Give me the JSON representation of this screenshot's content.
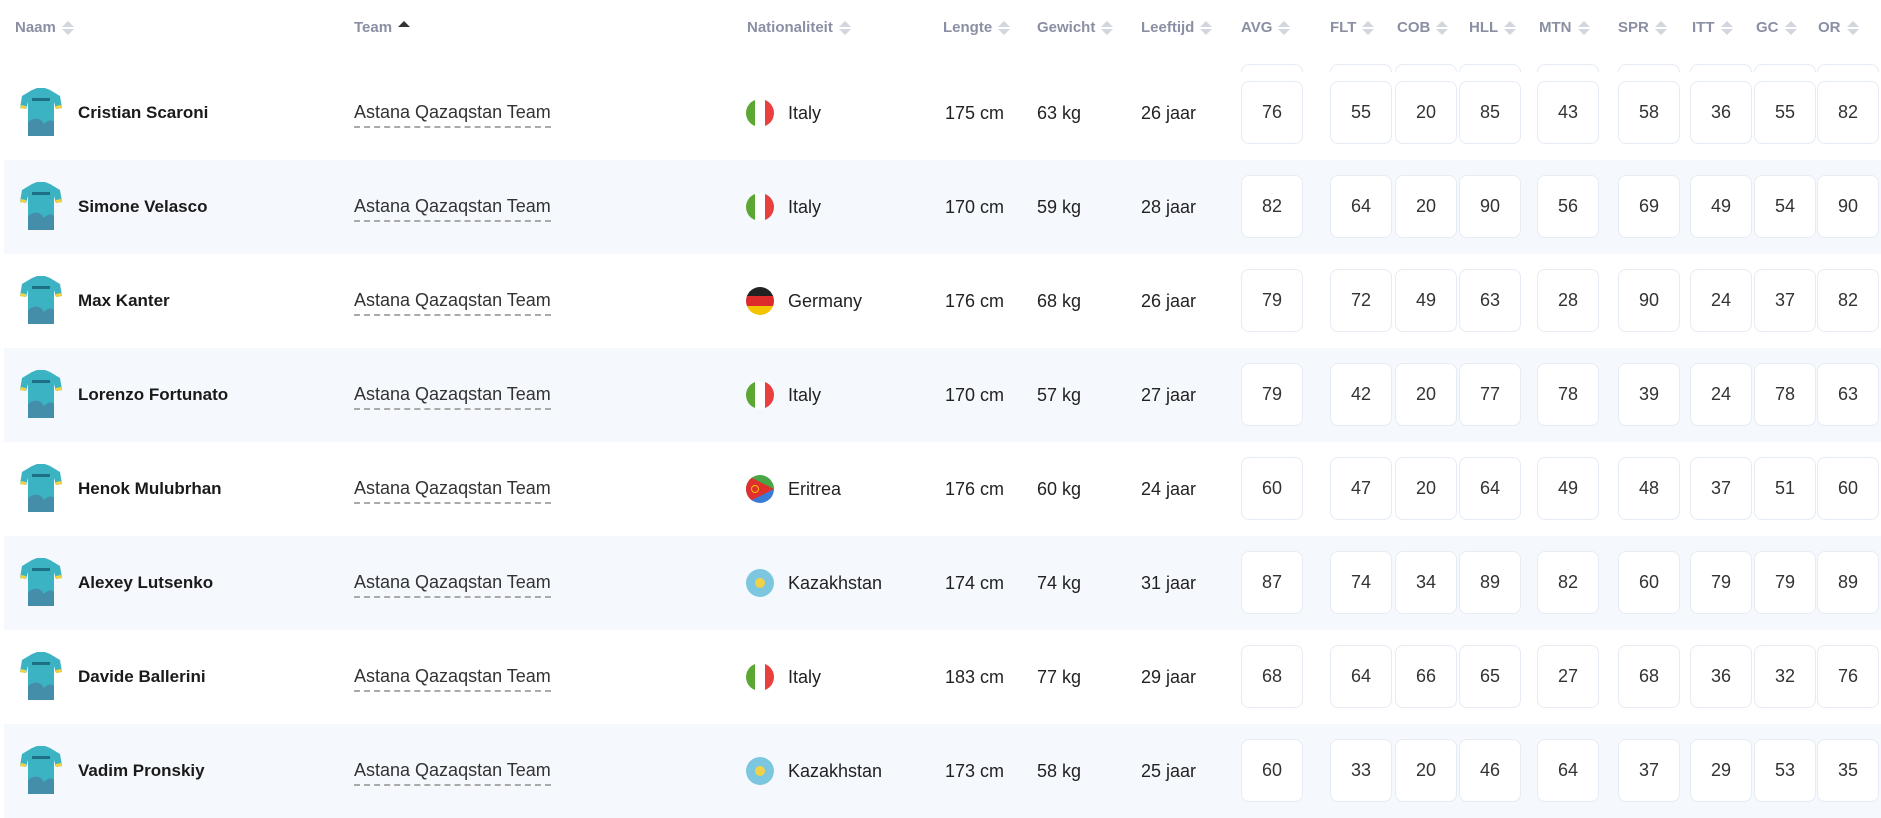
{
  "headers": {
    "naam": "Naam",
    "team": "Team",
    "nationaliteit": "Nationaliteit",
    "lengte": "Lengte",
    "gewicht": "Gewicht",
    "leeftijd": "Leeftijd",
    "avg": "AVG",
    "flt": "FLT",
    "cob": "COB",
    "hll": "HLL",
    "mtn": "MTN",
    "spr": "SPR",
    "itt": "ITT",
    "gc": "GC",
    "or": "OR"
  },
  "sort": {
    "column": "team",
    "direction": "ascending"
  },
  "colors": {
    "jersey": "#3bb3c3",
    "stripe": "#f5f9fd",
    "header_text": "#8a8fa3"
  },
  "riders": [
    {
      "name": "Cristian Scaroni",
      "team": "Astana Qazaqstan Team",
      "country": "Italy",
      "flag": "italy",
      "height": "175 cm",
      "weight": "63 kg",
      "age": "26 jaar",
      "stats": [
        "76",
        "55",
        "20",
        "85",
        "43",
        "58",
        "36",
        "55",
        "82"
      ]
    },
    {
      "name": "Simone Velasco",
      "team": "Astana Qazaqstan Team",
      "country": "Italy",
      "flag": "italy",
      "height": "170 cm",
      "weight": "59 kg",
      "age": "28 jaar",
      "stats": [
        "82",
        "64",
        "20",
        "90",
        "56",
        "69",
        "49",
        "54",
        "90"
      ]
    },
    {
      "name": "Max Kanter",
      "team": "Astana Qazaqstan Team",
      "country": "Germany",
      "flag": "germany",
      "height": "176 cm",
      "weight": "68 kg",
      "age": "26 jaar",
      "stats": [
        "79",
        "72",
        "49",
        "63",
        "28",
        "90",
        "24",
        "37",
        "82"
      ]
    },
    {
      "name": "Lorenzo Fortunato",
      "team": "Astana Qazaqstan Team",
      "country": "Italy",
      "flag": "italy",
      "height": "170 cm",
      "weight": "57 kg",
      "age": "27 jaar",
      "stats": [
        "79",
        "42",
        "20",
        "77",
        "78",
        "39",
        "24",
        "78",
        "63"
      ]
    },
    {
      "name": "Henok Mulubrhan",
      "team": "Astana Qazaqstan Team",
      "country": "Eritrea",
      "flag": "eritrea",
      "height": "176 cm",
      "weight": "60 kg",
      "age": "24 jaar",
      "stats": [
        "60",
        "47",
        "20",
        "64",
        "49",
        "48",
        "37",
        "51",
        "60"
      ]
    },
    {
      "name": "Alexey Lutsenko",
      "team": "Astana Qazaqstan Team",
      "country": "Kazakhstan",
      "flag": "kazakhstan",
      "height": "174 cm",
      "weight": "74 kg",
      "age": "31 jaar",
      "stats": [
        "87",
        "74",
        "34",
        "89",
        "82",
        "60",
        "79",
        "79",
        "89"
      ]
    },
    {
      "name": "Davide Ballerini",
      "team": "Astana Qazaqstan Team",
      "country": "Italy",
      "flag": "italy",
      "height": "183 cm",
      "weight": "77 kg",
      "age": "29 jaar",
      "stats": [
        "68",
        "64",
        "66",
        "65",
        "27",
        "68",
        "36",
        "32",
        "76"
      ]
    },
    {
      "name": "Vadim Pronskiy",
      "team": "Astana Qazaqstan Team",
      "country": "Kazakhstan",
      "flag": "kazakhstan",
      "height": "173 cm",
      "weight": "58 kg",
      "age": "25 jaar",
      "stats": [
        "60",
        "33",
        "20",
        "46",
        "64",
        "37",
        "29",
        "53",
        "35"
      ]
    }
  ]
}
